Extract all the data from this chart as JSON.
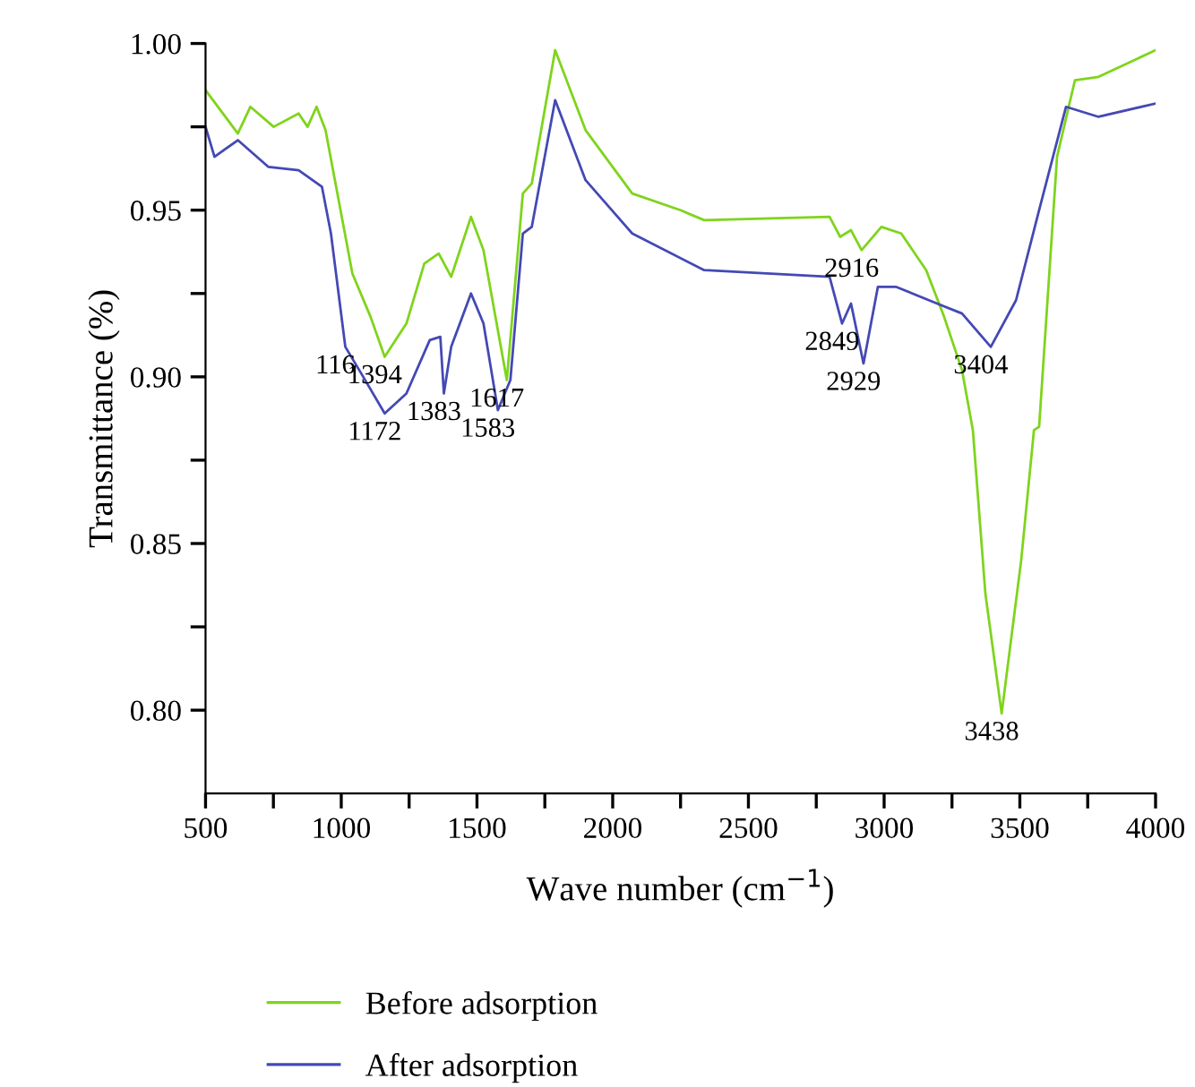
{
  "chart_data": {
    "type": "line",
    "xlabel": "Wave number (cm$^{−1}$)",
    "ylabel": "Transmittance (%)",
    "xlim": [
      500,
      4000
    ],
    "ylim": [
      0.775,
      1.0
    ],
    "xticks": [
      500,
      {
        "value": 750,
        "label": null
      },
      1000,
      {
        "value": 1250,
        "label": null
      },
      1500,
      {
        "value": 1750,
        "label": null
      },
      2000,
      {
        "value": 2250,
        "label": null
      },
      2500,
      {
        "value": 2750,
        "label": null
      },
      3000,
      {
        "value": 3250,
        "label": null
      },
      3500,
      {
        "value": 3750,
        "label": null
      },
      4000
    ],
    "yticks": [
      {
        "value": 0.8,
        "label": "0.80"
      },
      {
        "value": 0.825,
        "label": null
      },
      {
        "value": 0.85,
        "label": "0.85"
      },
      {
        "value": 0.875,
        "label": null
      },
      {
        "value": 0.9,
        "label": "0.90"
      },
      {
        "value": 0.925,
        "label": null
      },
      {
        "value": 0.95,
        "label": "0.95"
      },
      {
        "value": 0.975,
        "label": null
      },
      {
        "value": 1.0,
        "label": "1.00"
      }
    ],
    "grid": false,
    "legend": "bottom",
    "marker": "none",
    "line_style": "solid",
    "series": [
      {
        "name": "Before adsorption",
        "color": "#7fd41c",
        "x": [
          500,
          619,
          665,
          751,
          843,
          876,
          909,
          942,
          1041,
          1108,
          1160,
          1240,
          1306,
          1359,
          1405,
          1478,
          1524,
          1610,
          1669,
          1702,
          1788,
          1900,
          2072,
          2250,
          2337,
          2799,
          2838,
          2878,
          2917,
          2990,
          3063,
          3155,
          3221,
          3287,
          3327,
          3373,
          3433,
          3505,
          3552,
          3571,
          3637,
          3703,
          3790,
          4000
        ],
        "values": [
          0.986,
          0.973,
          0.981,
          0.975,
          0.979,
          0.975,
          0.981,
          0.974,
          0.931,
          0.918,
          0.906,
          0.916,
          0.934,
          0.937,
          0.93,
          0.948,
          0.938,
          0.899,
          0.955,
          0.958,
          0.998,
          0.974,
          0.955,
          0.95,
          0.947,
          0.948,
          0.942,
          0.944,
          0.938,
          0.945,
          0.943,
          0.932,
          0.918,
          0.902,
          0.884,
          0.835,
          0.799,
          0.845,
          0.884,
          0.885,
          0.966,
          0.989,
          0.99,
          0.998
        ]
      },
      {
        "name": "After adsorption",
        "color": "#4449b4",
        "x": [
          500,
          533,
          619,
          731,
          843,
          929,
          962,
          1015,
          1081,
          1160,
          1240,
          1326,
          1365,
          1378,
          1405,
          1478,
          1524,
          1577,
          1623,
          1669,
          1702,
          1788,
          1900,
          2072,
          2337,
          2799,
          2845,
          2878,
          2924,
          2977,
          3043,
          3195,
          3287,
          3393,
          3486,
          3571,
          3670,
          3790,
          4000
        ],
        "values": [
          0.975,
          0.966,
          0.971,
          0.963,
          0.962,
          0.957,
          0.943,
          0.909,
          0.9,
          0.889,
          0.895,
          0.911,
          0.912,
          0.895,
          0.909,
          0.925,
          0.916,
          0.89,
          0.899,
          0.943,
          0.945,
          0.983,
          0.959,
          0.943,
          0.932,
          0.93,
          0.916,
          0.922,
          0.904,
          0.927,
          0.927,
          0.922,
          0.919,
          0.909,
          0.923,
          0.95,
          0.981,
          0.978,
          0.982
        ]
      }
    ],
    "annotations": [
      {
        "text": "116",
        "x": 1015,
        "y": 0.909
      },
      {
        "text": "1394",
        "x": 1160,
        "y": 0.906
      },
      {
        "text": "1172",
        "x": 1160,
        "y": 0.889
      },
      {
        "text": "1383",
        "x": 1378,
        "y": 0.895
      },
      {
        "text": "1583",
        "x": 1577,
        "y": 0.89
      },
      {
        "text": "1617",
        "x": 1610,
        "y": 0.899
      },
      {
        "text": "2916",
        "x": 2917,
        "y": 0.938
      },
      {
        "text": "2849",
        "x": 2845,
        "y": 0.916
      },
      {
        "text": "2929",
        "x": 2924,
        "y": 0.904
      },
      {
        "text": "3404",
        "x": 3393,
        "y": 0.909
      },
      {
        "text": "3438",
        "x": 3433,
        "y": 0.799
      }
    ]
  }
}
